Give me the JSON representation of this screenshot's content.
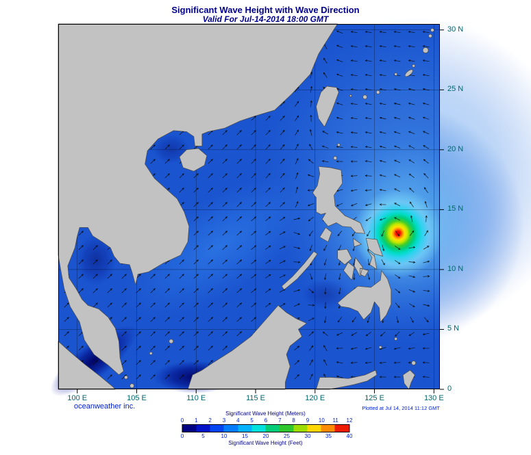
{
  "header": {
    "title": "Significant Wave Height with Wave Direction",
    "subtitle": "Valid For Jul-14-2014 18:00 GMT"
  },
  "axes": {
    "x": {
      "labels": [
        "100 E",
        "105 E",
        "110 E",
        "115 E",
        "120 E",
        "125 E",
        "130 E"
      ],
      "lons": [
        100,
        105,
        110,
        115,
        120,
        125,
        130
      ]
    },
    "y": {
      "labels": [
        "30 N",
        "25 N",
        "20 N",
        "15 N",
        "10 N",
        "5 N",
        "0"
      ],
      "lats": [
        30,
        25,
        20,
        15,
        10,
        5,
        0
      ]
    }
  },
  "footer": {
    "credit": "oceanweather inc.",
    "plotted": "Plotted at Jul 14, 2014 11:12 GMT"
  },
  "legend": {
    "meters_title": "Significant Wave Height (Meters)",
    "feet_title": "Significant Wave Height (Feet)",
    "meters_ticks": [
      "0",
      "1",
      "2",
      "3",
      "4",
      "5",
      "6",
      "7",
      "8",
      "9",
      "10",
      "11",
      "12"
    ],
    "feet_ticks": [
      "0",
      "5",
      "10",
      "15",
      "20",
      "25",
      "30",
      "35",
      "40"
    ],
    "colors": [
      "#000082",
      "#0013c8",
      "#0045f0",
      "#007cff",
      "#00b2ff",
      "#00e0dc",
      "#00cd78",
      "#2ec82e",
      "#9cdc00",
      "#ffd700",
      "#ff8c00",
      "#ee1c00"
    ]
  },
  "map": {
    "region": {
      "lon_min": 98.4,
      "lon_max": 130.5,
      "lat_min": 0,
      "lat_max": 30.5
    },
    "grid_lons": [
      100,
      105,
      110,
      115,
      120,
      125,
      130
    ],
    "grid_lats": [
      5,
      10,
      15,
      20,
      25,
      30
    ],
    "storm": {
      "center_lon": 127.0,
      "center_lat": 13.2
    },
    "colors": {
      "ocean_base": "#1a55cf",
      "land": "#c2c2c2",
      "coastline": "#4a4a4a",
      "grid": "#000000",
      "arrow": "#0a0a0a"
    }
  }
}
